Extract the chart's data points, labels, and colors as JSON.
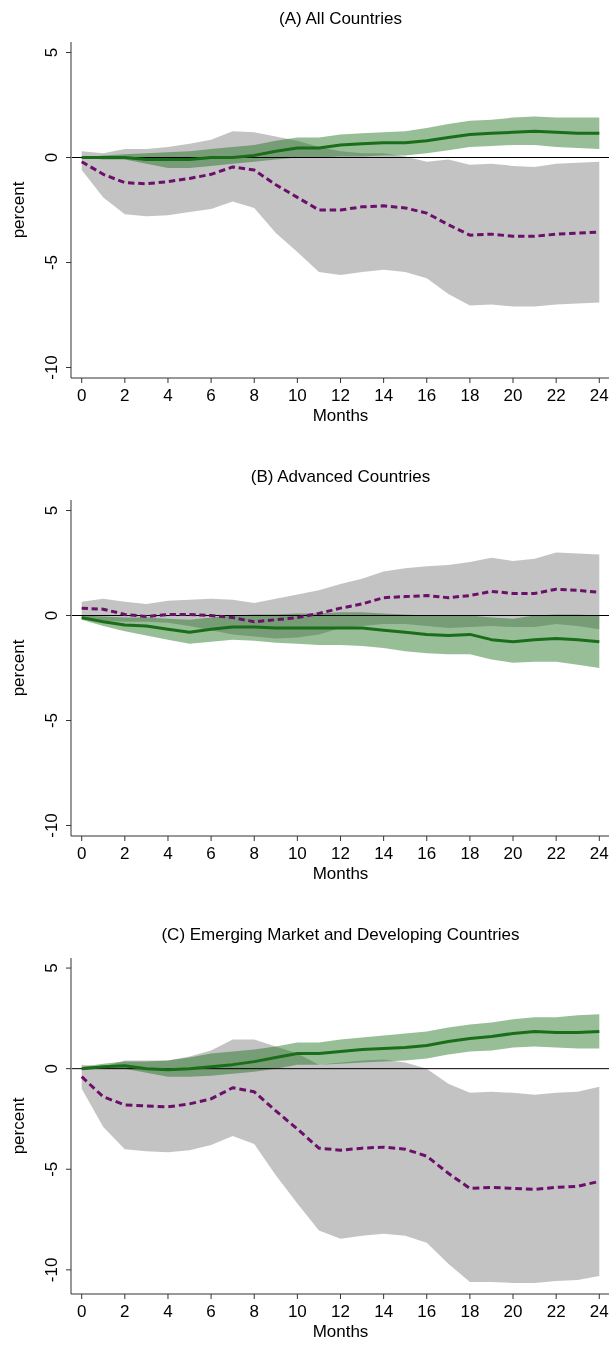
{
  "chart_data": [
    {
      "type": "line",
      "title": "(A) All Countries",
      "xlabel": "Months",
      "ylabel": "percent",
      "x": [
        0,
        1,
        2,
        3,
        4,
        5,
        6,
        7,
        8,
        9,
        10,
        11,
        12,
        13,
        14,
        15,
        16,
        17,
        18,
        19,
        20,
        21,
        22,
        23,
        24
      ],
      "xlim": [
        -0.45,
        24.45
      ],
      "xticks": [
        0,
        2,
        4,
        6,
        8,
        10,
        12,
        14,
        16,
        18,
        20,
        22,
        24
      ],
      "ylim": [
        -10.5,
        5.5
      ],
      "yticks": [
        -10,
        -5,
        0,
        5
      ],
      "ref_lines": [
        {
          "axis": "y",
          "value": 0,
          "color": "#000000"
        }
      ],
      "series": [
        {
          "color": "#6b0f6b",
          "line_style": "dashed",
          "values": [
            -0.2,
            -0.8,
            -1.2,
            -1.25,
            -1.15,
            -1.0,
            -0.8,
            -0.45,
            -0.6,
            -1.3,
            -1.9,
            -2.5,
            -2.5,
            -2.35,
            -2.3,
            -2.4,
            -2.65,
            -3.2,
            -3.7,
            -3.65,
            -3.75,
            -3.75,
            -3.65,
            -3.6,
            -3.55
          ],
          "lower": [
            -0.6,
            -1.9,
            -2.7,
            -2.8,
            -2.75,
            -2.6,
            -2.45,
            -2.1,
            -2.4,
            -3.6,
            -4.5,
            -5.45,
            -5.6,
            -5.45,
            -5.35,
            -5.45,
            -5.75,
            -6.5,
            -7.05,
            -7.0,
            -7.1,
            -7.1,
            -7.0,
            -6.95,
            -6.9
          ],
          "upper": [
            0.3,
            0.2,
            0.4,
            0.4,
            0.5,
            0.65,
            0.85,
            1.25,
            1.2,
            1.0,
            0.8,
            0.5,
            0.3,
            0.2,
            0.2,
            0.05,
            -0.2,
            -0.1,
            -0.35,
            -0.3,
            -0.4,
            -0.45,
            -0.3,
            -0.25,
            -0.2
          ]
        },
        {
          "color": "#1a6e1a",
          "line_style": "solid",
          "values": [
            0,
            0,
            0,
            -0.1,
            -0.1,
            -0.1,
            0,
            0,
            0.1,
            0.3,
            0.45,
            0.45,
            0.6,
            0.65,
            0.7,
            0.7,
            0.8,
            0.95,
            1.1,
            1.15,
            1.2,
            1.25,
            1.2,
            1.15,
            1.15
          ],
          "lower": [
            0,
            -0.1,
            -0.1,
            -0.3,
            -0.5,
            -0.5,
            -0.4,
            -0.3,
            -0.2,
            -0.1,
            0,
            0,
            0.05,
            0.05,
            0.1,
            0.1,
            0.2,
            0.35,
            0.5,
            0.55,
            0.6,
            0.6,
            0.5,
            0.45,
            0.4
          ],
          "upper": [
            0,
            0.1,
            0.15,
            0.2,
            0.25,
            0.3,
            0.4,
            0.5,
            0.6,
            0.8,
            0.95,
            0.95,
            1.1,
            1.15,
            1.2,
            1.25,
            1.4,
            1.6,
            1.75,
            1.8,
            1.9,
            1.95,
            1.9,
            1.9,
            1.9
          ]
        }
      ]
    },
    {
      "type": "line",
      "title": "(B) Advanced Countries",
      "xlabel": "Months",
      "ylabel": "percent",
      "x": [
        0,
        1,
        2,
        3,
        4,
        5,
        6,
        7,
        8,
        9,
        10,
        11,
        12,
        13,
        14,
        15,
        16,
        17,
        18,
        19,
        20,
        21,
        22,
        23,
        24
      ],
      "xlim": [
        -0.45,
        24.45
      ],
      "xticks": [
        0,
        2,
        4,
        6,
        8,
        10,
        12,
        14,
        16,
        18,
        20,
        22,
        24
      ],
      "ylim": [
        -10.5,
        5.5
      ],
      "yticks": [
        -10,
        -5,
        0,
        5
      ],
      "ref_lines": [
        {
          "axis": "y",
          "value": 0,
          "color": "#000000"
        }
      ],
      "series": [
        {
          "color": "#6b0f6b",
          "line_style": "dashed",
          "values": [
            0.35,
            0.3,
            0.05,
            -0.05,
            0.05,
            0.05,
            0,
            -0.1,
            -0.3,
            -0.2,
            -0.1,
            0.1,
            0.35,
            0.55,
            0.85,
            0.9,
            0.95,
            0.85,
            0.95,
            1.15,
            1.05,
            1.05,
            1.25,
            1.2,
            1.1
          ],
          "lower": [
            -0.2,
            -0.25,
            -0.3,
            -0.3,
            -0.35,
            -0.5,
            -0.7,
            -0.9,
            -1.0,
            -1.1,
            -1.05,
            -0.9,
            -0.6,
            -0.5,
            -0.4,
            -0.4,
            -0.5,
            -0.6,
            -0.55,
            -0.5,
            -0.55,
            -0.55,
            -0.4,
            -0.5,
            -0.65
          ],
          "upper": [
            0.65,
            0.8,
            0.65,
            0.55,
            0.7,
            0.75,
            0.8,
            0.75,
            0.6,
            0.8,
            1.0,
            1.2,
            1.5,
            1.75,
            2.1,
            2.25,
            2.35,
            2.4,
            2.55,
            2.75,
            2.6,
            2.7,
            3.0,
            2.95,
            2.9
          ]
        },
        {
          "color": "#1a6e1a",
          "line_style": "solid",
          "values": [
            -0.1,
            -0.3,
            -0.45,
            -0.5,
            -0.65,
            -0.8,
            -0.65,
            -0.55,
            -0.55,
            -0.6,
            -0.6,
            -0.6,
            -0.6,
            -0.6,
            -0.7,
            -0.8,
            -0.9,
            -0.95,
            -0.9,
            -1.15,
            -1.25,
            -1.15,
            -1.1,
            -1.15,
            -1.25
          ],
          "lower": [
            -0.2,
            -0.5,
            -0.75,
            -0.95,
            -1.15,
            -1.35,
            -1.25,
            -1.15,
            -1.2,
            -1.3,
            -1.35,
            -1.4,
            -1.4,
            -1.45,
            -1.55,
            -1.7,
            -1.8,
            -1.85,
            -1.85,
            -2.1,
            -2.25,
            -2.2,
            -2.2,
            -2.35,
            -2.5
          ],
          "upper": [
            0,
            -0.05,
            -0.1,
            -0.1,
            -0.15,
            -0.2,
            -0.1,
            0,
            0.05,
            0.05,
            0.1,
            0.1,
            0.15,
            0.15,
            0.1,
            0.05,
            0,
            0,
            0,
            -0.1,
            -0.15,
            0,
            0.05,
            0.05,
            0
          ]
        }
      ]
    },
    {
      "type": "line",
      "title": "(C) Emerging Market and Developing Countries",
      "xlabel": "Months",
      "ylabel": "percent",
      "x": [
        0,
        1,
        2,
        3,
        4,
        5,
        6,
        7,
        8,
        9,
        10,
        11,
        12,
        13,
        14,
        15,
        16,
        17,
        18,
        19,
        20,
        21,
        22,
        23,
        24
      ],
      "xlim": [
        -0.45,
        24.45
      ],
      "xticks": [
        0,
        2,
        4,
        6,
        8,
        10,
        12,
        14,
        16,
        18,
        20,
        22,
        24
      ],
      "ylim": [
        -11.2,
        5.5
      ],
      "yticks": [
        -10,
        -5,
        0,
        5
      ],
      "ref_lines": [
        {
          "axis": "y",
          "value": 0,
          "color": "#000000"
        }
      ],
      "series": [
        {
          "color": "#6b0f6b",
          "line_style": "dashed",
          "values": [
            -0.4,
            -1.4,
            -1.8,
            -1.85,
            -1.9,
            -1.75,
            -1.5,
            -0.95,
            -1.15,
            -2.1,
            -3.0,
            -3.95,
            -4.05,
            -3.95,
            -3.9,
            -4.0,
            -4.35,
            -5.2,
            -5.95,
            -5.9,
            -5.95,
            -6.0,
            -5.9,
            -5.85,
            -5.6
          ],
          "lower": [
            -1.0,
            -2.9,
            -4.0,
            -4.1,
            -4.15,
            -4.05,
            -3.8,
            -3.35,
            -3.75,
            -5.3,
            -6.7,
            -8.05,
            -8.45,
            -8.3,
            -8.2,
            -8.3,
            -8.65,
            -9.7,
            -10.6,
            -10.6,
            -10.65,
            -10.65,
            -10.55,
            -10.5,
            -10.3
          ],
          "upper": [
            0.2,
            0.1,
            0.4,
            0.4,
            0.4,
            0.6,
            0.9,
            1.45,
            1.45,
            1.1,
            0.75,
            0.2,
            0.3,
            0.4,
            0.45,
            0.3,
            0,
            -0.75,
            -1.2,
            -1.15,
            -1.2,
            -1.3,
            -1.2,
            -1.15,
            -0.9
          ]
        },
        {
          "color": "#1a6e1a",
          "line_style": "solid",
          "values": [
            0,
            0.1,
            0.15,
            0,
            -0.05,
            0,
            0.1,
            0.2,
            0.35,
            0.55,
            0.75,
            0.75,
            0.85,
            0.95,
            1.0,
            1.05,
            1.15,
            1.35,
            1.5,
            1.6,
            1.75,
            1.85,
            1.8,
            1.8,
            1.85
          ],
          "lower": [
            0,
            0,
            0,
            -0.2,
            -0.4,
            -0.4,
            -0.35,
            -0.25,
            -0.15,
            0,
            0.2,
            0.2,
            0.25,
            0.3,
            0.35,
            0.4,
            0.5,
            0.7,
            0.85,
            0.9,
            1.05,
            1.1,
            1.05,
            1.0,
            1.0
          ],
          "upper": [
            0.1,
            0.25,
            0.35,
            0.35,
            0.4,
            0.55,
            0.75,
            0.85,
            0.95,
            1.1,
            1.3,
            1.3,
            1.45,
            1.55,
            1.65,
            1.75,
            1.85,
            2.05,
            2.2,
            2.3,
            2.45,
            2.55,
            2.55,
            2.65,
            2.7
          ]
        }
      ]
    }
  ]
}
